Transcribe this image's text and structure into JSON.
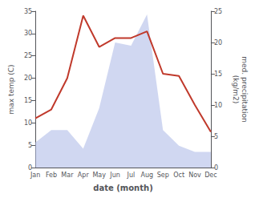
{
  "chart_data": {
    "type": "line",
    "categories": [
      "Jan",
      "Feb",
      "Mar",
      "Apr",
      "May",
      "Jun",
      "Jul",
      "Aug",
      "Sep",
      "Oct",
      "Nov",
      "Dec"
    ],
    "xlabel": "date (month)",
    "ylabel": "max temp (C)",
    "y2label": "med. precipitation\n(kg/m2)",
    "series": [
      {
        "type": "area",
        "axis": "y2",
        "color": "#b0bce8",
        "values": [
          4,
          6,
          6,
          3,
          9.5,
          20,
          19.5,
          24.5,
          6,
          3.5,
          2.5,
          2.5
        ]
      },
      {
        "type": "line",
        "color": "#c0392b",
        "values": [
          11,
          13,
          20,
          34,
          27,
          29,
          29,
          30.5,
          21,
          20.5,
          14,
          8
        ]
      }
    ],
    "ylim": [
      0,
      35
    ],
    "yticks": [
      0,
      5,
      10,
      15,
      20,
      25,
      30,
      35
    ],
    "y2lim": [
      0,
      25
    ],
    "y2ticks": [
      0,
      5,
      10,
      15,
      20,
      25
    ],
    "grid": false
  }
}
